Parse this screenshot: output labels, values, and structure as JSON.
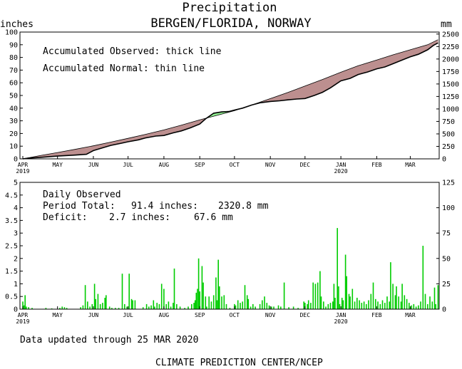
{
  "title": "Precipitation",
  "subtitle": "BERGEN/FLORIDA, NORWAY",
  "footer_updated": "Data updated through 25 MAR 2020",
  "footer_credit": "CLIMATE PREDICTION CENTER/NCEP",
  "colors": {
    "deficit_fill": "#bc8f8f",
    "surplus_fill": "#90ee90",
    "daily_bar": "#00cc00",
    "axis": "#000000"
  },
  "chart_data": [
    {
      "type": "area",
      "ylabel": "inches",
      "y2label": "mm",
      "legend": [
        "Accumulated Observed: thick line",
        "Accumulated Normal: thin line"
      ],
      "ylim": [
        0,
        100
      ],
      "y2lim": [
        0,
        2540
      ],
      "yticks": [
        "0",
        "10",
        "20",
        "30",
        "40",
        "50",
        "60",
        "70",
        "80",
        "90",
        "100"
      ],
      "y2ticks": [
        "0",
        "250",
        "500",
        "750",
        "1000",
        "1250",
        "1500",
        "1750",
        "2000",
        "2250",
        "2500"
      ],
      "xlim_days": [
        0,
        360
      ],
      "month_ticks": [
        {
          "label": "APR",
          "year": "2019",
          "day": 0
        },
        {
          "label": "MAY",
          "day": 30
        },
        {
          "label": "JUN",
          "day": 61
        },
        {
          "label": "JUL",
          "day": 91
        },
        {
          "label": "AUG",
          "day": 122
        },
        {
          "label": "SEP",
          "day": 153
        },
        {
          "label": "OCT",
          "day": 183
        },
        {
          "label": "NOV",
          "day": 214
        },
        {
          "label": "DEC",
          "day": 244
        },
        {
          "label": "JAN",
          "year": "2020",
          "day": 275
        },
        {
          "label": "FEB",
          "day": 306
        },
        {
          "label": "MAR",
          "day": 335
        }
      ],
      "series": [
        {
          "name": "Accumulated Normal",
          "x": [
            0,
            15,
            30,
            45,
            61,
            76,
            91,
            106,
            122,
            137,
            153,
            168,
            183,
            198,
            214,
            229,
            244,
            259,
            275,
            290,
            306,
            320,
            335,
            350,
            359
          ],
          "y": [
            0,
            2.6,
            5.0,
            7.5,
            10.3,
            13.2,
            16.2,
            19.3,
            22.8,
            26.5,
            30.8,
            34.3,
            38.0,
            42.5,
            47.5,
            52.3,
            57.4,
            62.6,
            68.3,
            73.4,
            78.0,
            82.0,
            86.0,
            90.0,
            94.0
          ]
        },
        {
          "name": "Accumulated Observed",
          "x": [
            0,
            5,
            15,
            30,
            45,
            55,
            61,
            70,
            76,
            85,
            91,
            100,
            106,
            115,
            122,
            130,
            137,
            145,
            153,
            158,
            165,
            172,
            178,
            183,
            190,
            198,
            205,
            214,
            222,
            229,
            237,
            244,
            252,
            259,
            266,
            275,
            283,
            290,
            298,
            306,
            313,
            320,
            328,
            335,
            342,
            350,
            355,
            359
          ],
          "y": [
            0,
            0.6,
            1.2,
            2.2,
            3.0,
            3.6,
            6.5,
            9.0,
            10.6,
            12.3,
            13.5,
            15.0,
            16.5,
            18.0,
            18.4,
            20.5,
            22.0,
            24.5,
            27.5,
            31.5,
            36.0,
            37.0,
            37.3,
            38.5,
            40.0,
            42.5,
            44.2,
            45.3,
            45.8,
            46.5,
            47.2,
            47.6,
            50.0,
            52.5,
            56.0,
            61.5,
            63.5,
            66.5,
            68.5,
            71.0,
            72.5,
            75.0,
            78.0,
            80.5,
            82.5,
            86.0,
            89.5,
            91.4
          ]
        }
      ]
    },
    {
      "type": "bar",
      "ylabel": "",
      "ylim": [
        0,
        5
      ],
      "y2lim": [
        0,
        125
      ],
      "yticks": [
        "0",
        "0.5",
        "1",
        "1.5",
        "2",
        "2.5",
        "3",
        "3.5",
        "4",
        "4.5",
        "5"
      ],
      "y2ticks": [
        "0",
        "25",
        "50",
        "75",
        "100",
        "125"
      ],
      "annotation_title": "Daily Observed",
      "period_total_label": "Period Total:",
      "period_total_in": "91.4 inches:",
      "period_total_mm": "2320.8 mm",
      "deficit_label": "Deficit:",
      "deficit_in": "2.7 inches:",
      "deficit_mm": "67.6 mm",
      "unit": "inches",
      "bars": [
        {
          "x": 0,
          "value": 0.3
        },
        {
          "x": 1,
          "value": 0.15
        },
        {
          "x": 2,
          "value": 0.55
        },
        {
          "x": 3,
          "value": 0.1
        },
        {
          "x": 5,
          "value": 0.08
        },
        {
          "x": 8,
          "value": 0.05
        },
        {
          "x": 20,
          "value": 0.05
        },
        {
          "x": 25,
          "value": 0.03
        },
        {
          "x": 32,
          "value": 0.05
        },
        {
          "x": 34,
          "value": 0.1
        },
        {
          "x": 36,
          "value": 0.08
        },
        {
          "x": 38,
          "value": 0.05
        },
        {
          "x": 50,
          "value": 0.08
        },
        {
          "x": 52,
          "value": 0.15
        },
        {
          "x": 54,
          "value": 0.95
        },
        {
          "x": 56,
          "value": 0.3
        },
        {
          "x": 58,
          "value": 0.1
        },
        {
          "x": 60,
          "value": 0.2
        },
        {
          "x": 62,
          "value": 1.0
        },
        {
          "x": 63,
          "value": 0.4
        },
        {
          "x": 65,
          "value": 0.6
        },
        {
          "x": 67,
          "value": 0.2
        },
        {
          "x": 69,
          "value": 0.25
        },
        {
          "x": 71,
          "value": 0.45
        },
        {
          "x": 72,
          "value": 0.55
        },
        {
          "x": 75,
          "value": 0.1
        },
        {
          "x": 77,
          "value": 0.05
        },
        {
          "x": 80,
          "value": 0.05
        },
        {
          "x": 83,
          "value": 0.05
        },
        {
          "x": 86,
          "value": 1.4
        },
        {
          "x": 88,
          "value": 0.2
        },
        {
          "x": 90,
          "value": 0.1
        },
        {
          "x": 92,
          "value": 1.4
        },
        {
          "x": 94,
          "value": 0.4
        },
        {
          "x": 95,
          "value": 0.35
        },
        {
          "x": 97,
          "value": 0.35
        },
        {
          "x": 104,
          "value": 0.08
        },
        {
          "x": 107,
          "value": 0.2
        },
        {
          "x": 109,
          "value": 0.1
        },
        {
          "x": 111,
          "value": 0.15
        },
        {
          "x": 113,
          "value": 0.35
        },
        {
          "x": 114,
          "value": 0.1
        },
        {
          "x": 116,
          "value": 0.25
        },
        {
          "x": 118,
          "value": 0.2
        },
        {
          "x": 120,
          "value": 1.0
        },
        {
          "x": 122,
          "value": 0.8
        },
        {
          "x": 124,
          "value": 0.2
        },
        {
          "x": 126,
          "value": 0.3
        },
        {
          "x": 128,
          "value": 0.1
        },
        {
          "x": 130,
          "value": 0.25
        },
        {
          "x": 131,
          "value": 1.6
        },
        {
          "x": 133,
          "value": 0.2
        },
        {
          "x": 136,
          "value": 0.1
        },
        {
          "x": 140,
          "value": 0.05
        },
        {
          "x": 143,
          "value": 0.1
        },
        {
          "x": 146,
          "value": 0.2
        },
        {
          "x": 148,
          "value": 0.25
        },
        {
          "x": 149,
          "value": 0.35
        },
        {
          "x": 150,
          "value": 0.65
        },
        {
          "x": 151,
          "value": 0.8
        },
        {
          "x": 152,
          "value": 2.0
        },
        {
          "x": 153,
          "value": 0.7
        },
        {
          "x": 155,
          "value": 1.7
        },
        {
          "x": 156,
          "value": 1.05
        },
        {
          "x": 158,
          "value": 0.5
        },
        {
          "x": 159,
          "value": 0.1
        },
        {
          "x": 161,
          "value": 0.5
        },
        {
          "x": 163,
          "value": 0.3
        },
        {
          "x": 165,
          "value": 0.55
        },
        {
          "x": 167,
          "value": 1.25
        },
        {
          "x": 168,
          "value": 0.35
        },
        {
          "x": 169,
          "value": 1.95
        },
        {
          "x": 170,
          "value": 0.9
        },
        {
          "x": 172,
          "value": 0.5
        },
        {
          "x": 174,
          "value": 0.55
        },
        {
          "x": 176,
          "value": 0.2
        },
        {
          "x": 179,
          "value": 0.05
        },
        {
          "x": 183,
          "value": 0.2
        },
        {
          "x": 184,
          "value": 0.15
        },
        {
          "x": 186,
          "value": 0.35
        },
        {
          "x": 188,
          "value": 0.25
        },
        {
          "x": 190,
          "value": 0.3
        },
        {
          "x": 192,
          "value": 0.95
        },
        {
          "x": 194,
          "value": 0.55
        },
        {
          "x": 195,
          "value": 0.4
        },
        {
          "x": 197,
          "value": 0.1
        },
        {
          "x": 199,
          "value": 0.2
        },
        {
          "x": 201,
          "value": 0.1
        },
        {
          "x": 205,
          "value": 0.2
        },
        {
          "x": 207,
          "value": 0.35
        },
        {
          "x": 209,
          "value": 0.5
        },
        {
          "x": 211,
          "value": 0.25
        },
        {
          "x": 213,
          "value": 0.15
        },
        {
          "x": 215,
          "value": 0.1
        },
        {
          "x": 217,
          "value": 0.1
        },
        {
          "x": 221,
          "value": 0.15
        },
        {
          "x": 223,
          "value": 0.1
        },
        {
          "x": 226,
          "value": 1.05
        },
        {
          "x": 230,
          "value": 0.08
        },
        {
          "x": 234,
          "value": 0.1
        },
        {
          "x": 238,
          "value": 0.05
        },
        {
          "x": 243,
          "value": 0.3
        },
        {
          "x": 244,
          "value": 0.25
        },
        {
          "x": 246,
          "value": 0.2
        },
        {
          "x": 247,
          "value": 0.35
        },
        {
          "x": 249,
          "value": 0.25
        },
        {
          "x": 251,
          "value": 1.05
        },
        {
          "x": 253,
          "value": 1.0
        },
        {
          "x": 255,
          "value": 1.05
        },
        {
          "x": 257,
          "value": 1.5
        },
        {
          "x": 258,
          "value": 0.5
        },
        {
          "x": 260,
          "value": 0.3
        },
        {
          "x": 262,
          "value": 0.1
        },
        {
          "x": 264,
          "value": 0.2
        },
        {
          "x": 266,
          "value": 0.25
        },
        {
          "x": 268,
          "value": 0.3
        },
        {
          "x": 269,
          "value": 1.0
        },
        {
          "x": 270,
          "value": 0.45
        },
        {
          "x": 272,
          "value": 3.2
        },
        {
          "x": 273,
          "value": 0.9
        },
        {
          "x": 274,
          "value": 0.2
        },
        {
          "x": 276,
          "value": 0.45
        },
        {
          "x": 277,
          "value": 0.35
        },
        {
          "x": 279,
          "value": 2.15
        },
        {
          "x": 280,
          "value": 1.3
        },
        {
          "x": 282,
          "value": 0.6
        },
        {
          "x": 283,
          "value": 0.5
        },
        {
          "x": 285,
          "value": 0.8
        },
        {
          "x": 287,
          "value": 0.3
        },
        {
          "x": 289,
          "value": 0.45
        },
        {
          "x": 291,
          "value": 0.35
        },
        {
          "x": 293,
          "value": 0.25
        },
        {
          "x": 295,
          "value": 0.3
        },
        {
          "x": 297,
          "value": 0.2
        },
        {
          "x": 299,
          "value": 0.35
        },
        {
          "x": 301,
          "value": 0.6
        },
        {
          "x": 303,
          "value": 1.05
        },
        {
          "x": 305,
          "value": 0.4
        },
        {
          "x": 307,
          "value": 0.3
        },
        {
          "x": 309,
          "value": 0.2
        },
        {
          "x": 311,
          "value": 0.35
        },
        {
          "x": 313,
          "value": 0.25
        },
        {
          "x": 315,
          "value": 0.5
        },
        {
          "x": 317,
          "value": 0.3
        },
        {
          "x": 318,
          "value": 1.85
        },
        {
          "x": 320,
          "value": 1.0
        },
        {
          "x": 322,
          "value": 0.55
        },
        {
          "x": 323,
          "value": 0.9
        },
        {
          "x": 325,
          "value": 0.5
        },
        {
          "x": 327,
          "value": 0.3
        },
        {
          "x": 328,
          "value": 1.0
        },
        {
          "x": 330,
          "value": 0.55
        },
        {
          "x": 332,
          "value": 0.4
        },
        {
          "x": 334,
          "value": 0.25
        },
        {
          "x": 336,
          "value": 0.15
        },
        {
          "x": 338,
          "value": 0.2
        },
        {
          "x": 340,
          "value": 0.1
        },
        {
          "x": 342,
          "value": 0.15
        },
        {
          "x": 344,
          "value": 0.3
        },
        {
          "x": 346,
          "value": 2.5
        },
        {
          "x": 348,
          "value": 0.6
        },
        {
          "x": 350,
          "value": 0.2
        },
        {
          "x": 352,
          "value": 0.5
        },
        {
          "x": 354,
          "value": 0.3
        },
        {
          "x": 356,
          "value": 0.85
        },
        {
          "x": 357,
          "value": 0.2
        },
        {
          "x": 359,
          "value": 0.95
        }
      ]
    }
  ]
}
